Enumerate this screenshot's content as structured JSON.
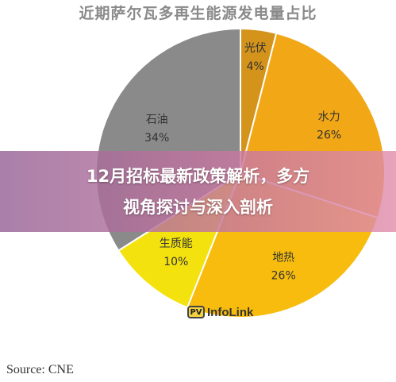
{
  "chart_data": {
    "type": "pie",
    "title": "近期萨尔瓦多再生能源发电量占比",
    "slices": [
      {
        "label": "光伏",
        "value": 4,
        "value_text": "4%",
        "color": "#d4931b"
      },
      {
        "label": "水力",
        "value": 26,
        "value_text": "26%",
        "color": "#f2a716"
      },
      {
        "label": "地热",
        "value": 26,
        "value_text": "26%",
        "color": "#f7bc0d"
      },
      {
        "label": "生质能",
        "value": 10,
        "value_text": "10%",
        "color": "#f3e20e"
      },
      {
        "label": "石油",
        "value": 34,
        "value_text": "34%",
        "color": "#8a8a8a"
      }
    ],
    "source": "Source: CNE"
  },
  "banner": {
    "line1": "12月招标最新政策解析，多方",
    "line2": "视角探讨与深入剖析"
  },
  "watermark": {
    "logo": "PV",
    "text": "InfoLink"
  }
}
